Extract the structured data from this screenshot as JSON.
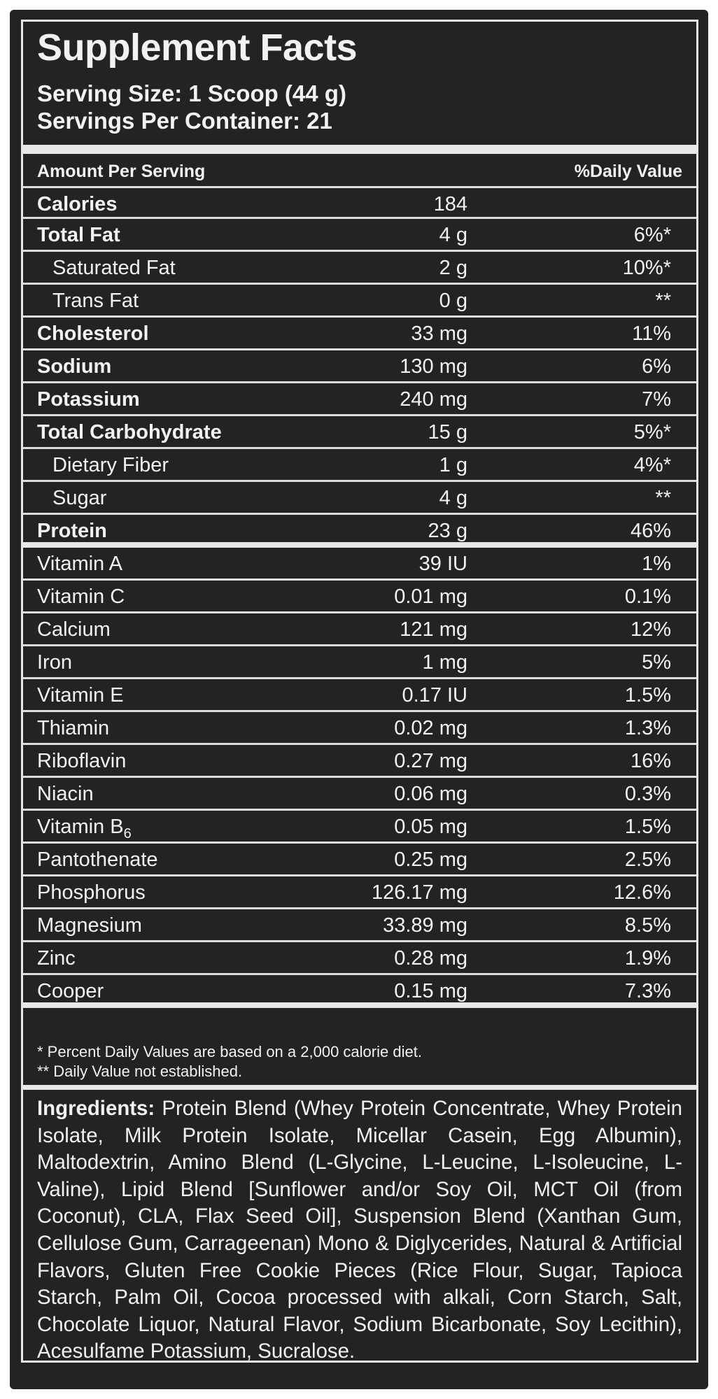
{
  "facts": {
    "title": "Supplement Facts",
    "serving_size": "Serving Size: 1 Scoop (44 g)",
    "servings_per_container": "Servings Per Container: 21",
    "header_left": "Amount Per Serving",
    "header_right": "%Daily Value",
    "rows": [
      {
        "name": "Calories",
        "amount": "184",
        "dv": ""
      },
      {
        "name": "Total Fat",
        "amount": "4 g",
        "dv": "6%*"
      },
      {
        "name": "Saturated Fat",
        "amount": "2 g",
        "dv": "10%*"
      },
      {
        "name": "Trans Fat",
        "amount": "0 g",
        "dv": "**"
      },
      {
        "name": "Cholesterol",
        "amount": "33 mg",
        "dv": "11%"
      },
      {
        "name": "Sodium",
        "amount": "130 mg",
        "dv": "6%"
      },
      {
        "name": "Potassium",
        "amount": "240 mg",
        "dv": "7%"
      },
      {
        "name": "Total Carbohydrate",
        "amount": "15 g",
        "dv": "5%*"
      },
      {
        "name": "Dietary Fiber",
        "amount": "1 g",
        "dv": "4%*"
      },
      {
        "name": "Sugar",
        "amount": "4 g",
        "dv": "**"
      },
      {
        "name": "Protein",
        "amount": "23 g",
        "dv": "46%"
      },
      {
        "name": "Vitamin A",
        "amount": "39 IU",
        "dv": "1%"
      },
      {
        "name": "Vitamin C",
        "amount": "0.01 mg",
        "dv": "0.1%"
      },
      {
        "name": "Calcium",
        "amount": "121 mg",
        "dv": "12%"
      },
      {
        "name": "Iron",
        "amount": "1 mg",
        "dv": "5%"
      },
      {
        "name": "Vitamin E",
        "amount": "0.17 IU",
        "dv": "1.5%"
      },
      {
        "name": "Thiamin",
        "amount": "0.02 mg",
        "dv": "1.3%"
      },
      {
        "name": "Riboflavin",
        "amount": "0.27 mg",
        "dv": "16%"
      },
      {
        "name": "Niacin",
        "amount": "0.06 mg",
        "dv": "0.3%"
      },
      {
        "name": "Vitamin B6",
        "amount": "0.05 mg",
        "dv": "1.5%"
      },
      {
        "name": "Pantothenate",
        "amount": "0.25 mg",
        "dv": "2.5%"
      },
      {
        "name": "Phosphorus",
        "amount": "126.17 mg",
        "dv": "12.6%"
      },
      {
        "name": "Magnesium",
        "amount": "33.89 mg",
        "dv": "8.5%"
      },
      {
        "name": "Zinc",
        "amount": "0.28 mg",
        "dv": "1.9%"
      },
      {
        "name": "Cooper",
        "amount": "0.15 mg",
        "dv": "7.3%"
      }
    ],
    "footnote_1": "* Percent Daily Values are based on a 2,000 calorie diet.",
    "footnote_2": "** Daily Value not established.",
    "ingredients_label": "Ingredients:",
    "ingredients_text": "Protein Blend (Whey Protein Concentrate, Whey Protein Isolate, Milk Protein Isolate, Micellar Casein, Egg Albumin), Maltodextrin, Amino Blend (L-Glycine, L-Leucine, L-Isoleucine, L-Valine), Lipid Blend [Sunflower and/or Soy Oil, MCT Oil (from Coconut), CLA, Flax Seed Oil], Suspension Blend (Xanthan Gum, Cellulose Gum, Carrageenan) Mono & Diglycerides, Natural & Artificial Flavors, Gluten Free Cookie Pieces (Rice Flour, Sugar, Tapioca Starch, Palm Oil, Cocoa processed with alkali, Corn Starch, Salt, Chocolate Liquor, Natural Flavor, Sodium Bicarbonate, Soy Lecithin), Acesulfame Potassium, Sucralose."
  }
}
